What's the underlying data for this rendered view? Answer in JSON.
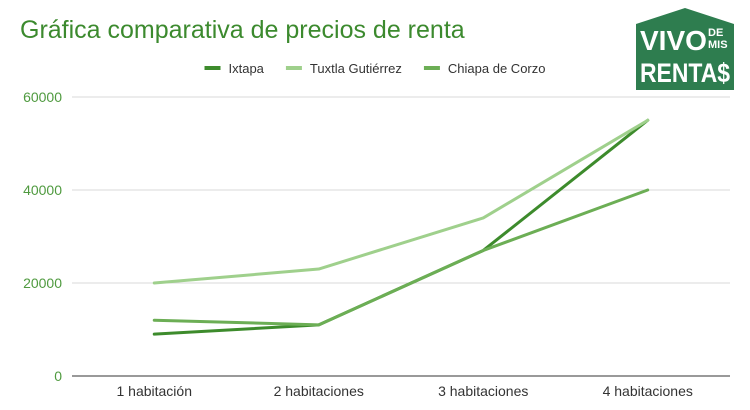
{
  "chart_data": {
    "type": "line",
    "title": "Gráfica comparativa de precios de renta",
    "categories": [
      "1 habitación",
      "2 habitaciones",
      "3 habitaciones",
      "4 habitaciones"
    ],
    "series": [
      {
        "name": "Ixtapa",
        "values": [
          9000,
          11000,
          27000,
          55000
        ],
        "color": "#3d8b2c"
      },
      {
        "name": "Tuxtla Gutiérrez",
        "values": [
          20000,
          23000,
          34000,
          55000
        ],
        "color": "#9fd08c"
      },
      {
        "name": "Chiapa de Corzo",
        "values": [
          12000,
          11000,
          27000,
          40000
        ],
        "color": "#6cae55"
      }
    ],
    "ylim": [
      0,
      60000
    ],
    "yticks": [
      "0",
      "20000",
      "40000",
      "60000"
    ],
    "yticks_values": [
      0,
      20000,
      40000,
      60000
    ],
    "grid": true,
    "legend_position": "top-center",
    "xlabel": "",
    "ylabel": ""
  },
  "logo": {
    "line1": "VIVO",
    "small_top": "DE",
    "small_bottom": "MIS",
    "line2": "RENTA$",
    "color": "#2e7d4f"
  }
}
